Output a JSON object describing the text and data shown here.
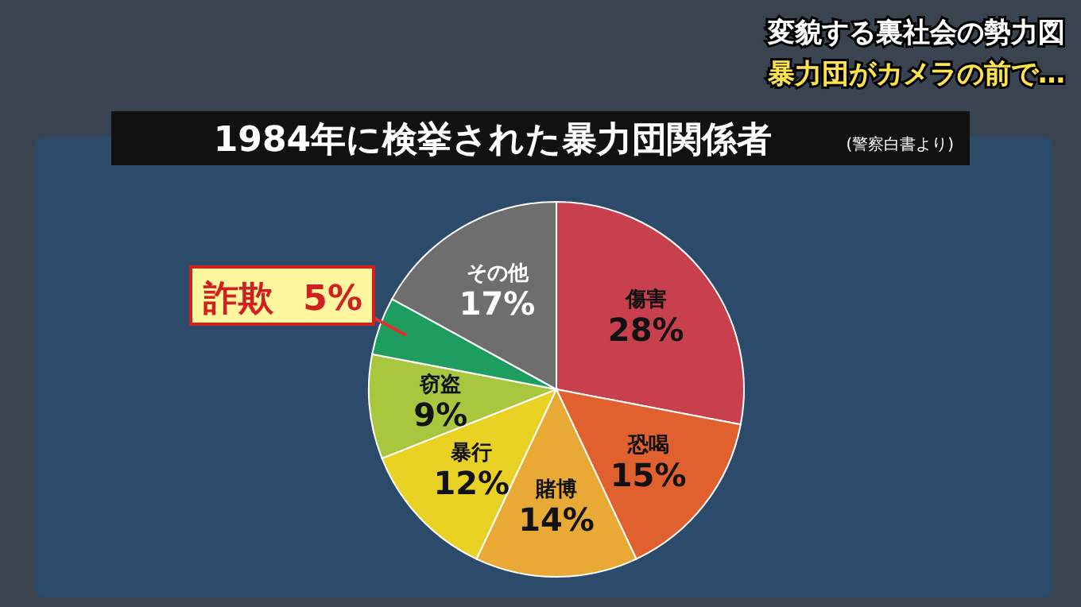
{
  "chart_data": {
    "type": "pie",
    "title": "1984年に検挙された暴力団関係者",
    "subtitle": "(警察白書より)",
    "annotations": [
      "変貌する裏社会の勢力図",
      "暴力団がカメラの前で…"
    ],
    "categories": [
      "傷害",
      "恐喝",
      "賭博",
      "暴行",
      "窃盗",
      "詐欺",
      "その他"
    ],
    "values": [
      28,
      15,
      14,
      12,
      9,
      5,
      17
    ],
    "value_labels": [
      "28%",
      "15%",
      "14%",
      "12%",
      "9%",
      "5%",
      "17%"
    ],
    "colors": [
      "#c8404e",
      "#e0602e",
      "#e8aa34",
      "#ead224",
      "#a8c63e",
      "#1e9e5e",
      "#6e6e6e"
    ],
    "legend": false
  }
}
